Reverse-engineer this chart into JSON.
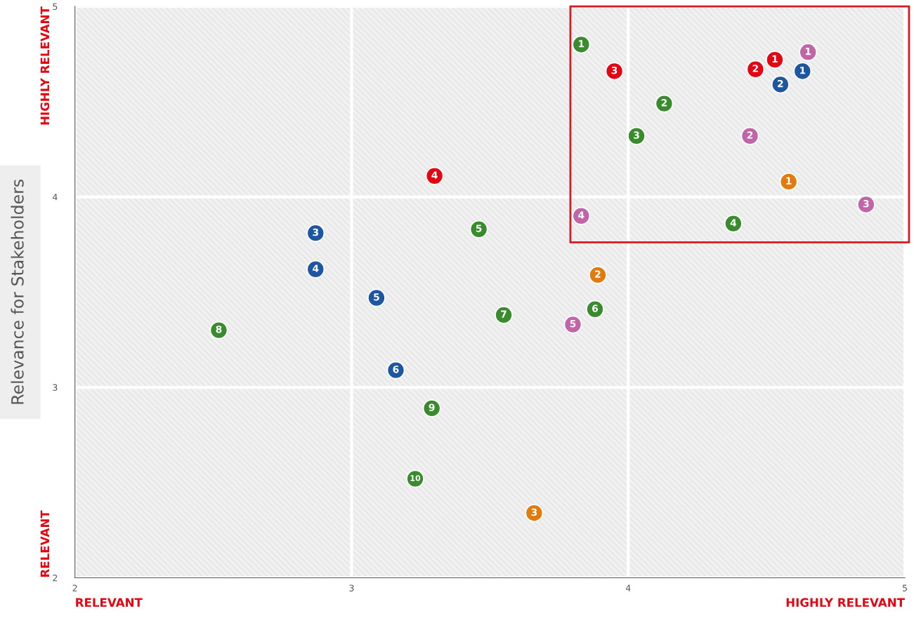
{
  "chart_data": {
    "type": "scatter",
    "ylabel": "Relevance for Stakeholders",
    "annotations": [
      "RELEVANT",
      "HIGHLY RELEVANT",
      "RELEVANT",
      "HIGHLY RELEVANT",
      {
        "text": "1",
        "x": 3.83,
        "y": 4.8
      },
      {
        "text": "2",
        "x": 4.13,
        "y": 4.49
      },
      {
        "text": "3",
        "x": 4.03,
        "y": 4.32
      },
      {
        "text": "4",
        "x": 4.38,
        "y": 3.86
      },
      {
        "text": "5",
        "x": 3.46,
        "y": 3.83
      },
      {
        "text": "6",
        "x": 3.88,
        "y": 3.41
      },
      {
        "text": "7",
        "x": 3.55,
        "y": 3.38
      },
      {
        "text": "8",
        "x": 2.52,
        "y": 3.3
      },
      {
        "text": "9",
        "x": 3.29,
        "y": 2.89
      },
      {
        "text": "10",
        "x": 3.23,
        "y": 2.52
      },
      {
        "text": "1",
        "x": 4.63,
        "y": 4.66
      },
      {
        "text": "2",
        "x": 4.55,
        "y": 4.59
      },
      {
        "text": "3",
        "x": 2.87,
        "y": 3.81
      },
      {
        "text": "4",
        "x": 2.87,
        "y": 3.62
      },
      {
        "text": "5",
        "x": 3.09,
        "y": 3.47
      },
      {
        "text": "6",
        "x": 3.16,
        "y": 3.09
      },
      {
        "text": "1",
        "x": 4.53,
        "y": 4.72
      },
      {
        "text": "2",
        "x": 4.46,
        "y": 4.67
      },
      {
        "text": "3",
        "x": 3.95,
        "y": 4.66
      },
      {
        "text": "4",
        "x": 3.3,
        "y": 4.11
      },
      {
        "text": "1",
        "x": 4.65,
        "y": 4.76
      },
      {
        "text": "2",
        "x": 4.44,
        "y": 4.32
      },
      {
        "text": "3",
        "x": 4.86,
        "y": 3.96
      },
      {
        "text": "4",
        "x": 3.83,
        "y": 3.9
      },
      {
        "text": "5",
        "x": 3.8,
        "y": 3.33
      },
      {
        "text": "1",
        "x": 4.58,
        "y": 4.08
      },
      {
        "text": "2",
        "x": 3.89,
        "y": 3.59
      },
      {
        "text": "3",
        "x": 3.66,
        "y": 2.34
      }
    ],
    "xlim": [
      2,
      5
    ],
    "xticks": [
      2,
      3,
      4,
      5
    ],
    "ylim": [
      2,
      5
    ],
    "yticks": [
      2,
      3,
      4,
      5
    ],
    "grid": true,
    "legend": false,
    "marker": "circle",
    "series": [
      {
        "color": "#3a8a2e",
        "x": [
          3.83,
          4.13,
          4.03,
          4.38,
          3.46,
          3.88,
          3.55,
          2.52,
          3.29,
          3.23
        ],
        "values": [
          4.8,
          4.49,
          4.32,
          3.86,
          3.83,
          3.41,
          3.38,
          3.3,
          2.89,
          2.52
        ]
      },
      {
        "color": "#1f56a0",
        "x": [
          4.63,
          4.55,
          2.87,
          2.87,
          3.09,
          3.16
        ],
        "values": [
          4.66,
          4.59,
          3.81,
          3.62,
          3.47,
          3.09
        ]
      },
      {
        "color": "#e30613",
        "x": [
          4.53,
          4.46,
          3.95,
          3.3
        ],
        "values": [
          4.72,
          4.67,
          4.66,
          4.11
        ]
      },
      {
        "color": "#c066a8",
        "x": [
          4.65,
          4.44,
          4.86,
          3.83,
          3.8
        ],
        "values": [
          4.76,
          4.32,
          3.96,
          3.9,
          3.33
        ]
      },
      {
        "color": "#e07b10",
        "x": [
          4.58,
          3.89,
          3.66
        ],
        "values": [
          4.08,
          3.59,
          2.34
        ]
      }
    ]
  }
}
